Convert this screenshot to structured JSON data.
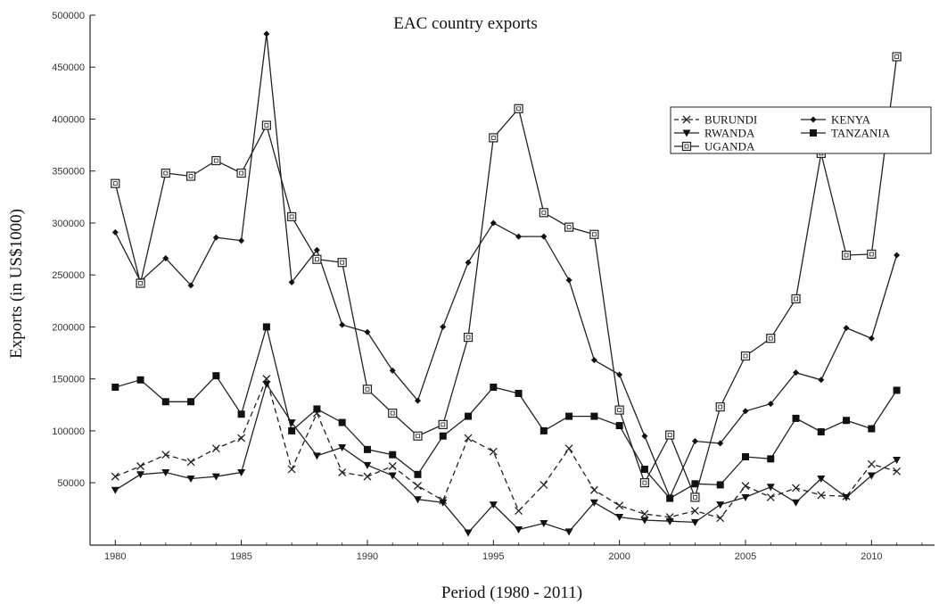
{
  "chart_data": {
    "type": "line",
    "title": "EAC country exports",
    "xlabel": "Period (1980 - 2011)",
    "ylabel": "Exports (in US$1000)",
    "xlim": [
      1979,
      2012.5
    ],
    "ylim": [
      -10000,
      500000
    ],
    "x_ticks": [
      1980,
      1985,
      1990,
      1995,
      2000,
      2005,
      2010
    ],
    "y_ticks": [
      50000,
      100000,
      150000,
      200000,
      250000,
      300000,
      350000,
      400000,
      450000,
      500000
    ],
    "x_tick_labels": [
      "1980",
      "1985",
      "1990",
      "1995",
      "2000",
      "2005",
      "2010"
    ],
    "y_tick_labels": [
      "50000",
      "100000",
      "150000",
      "200000",
      "250000",
      "300000",
      "350000",
      "400000",
      "450000",
      "500000"
    ],
    "grid": false,
    "legend_position": "top-right",
    "x": [
      1980,
      1981,
      1982,
      1983,
      1984,
      1985,
      1986,
      1987,
      1988,
      1989,
      1990,
      1991,
      1992,
      1993,
      1994,
      1995,
      1996,
      1997,
      1998,
      1999,
      2000,
      2001,
      2002,
      2003,
      2004,
      2005,
      2006,
      2007,
      2008,
      2009,
      2010,
      2011
    ],
    "series": [
      {
        "name": "BURUNDI",
        "marker": "x",
        "dash": true,
        "color": "#222222",
        "values": [
          56000,
          66000,
          77000,
          70000,
          83000,
          93000,
          150000,
          63000,
          117000,
          60000,
          56000,
          66000,
          47000,
          33000,
          93000,
          80000,
          23000,
          48000,
          83000,
          43000,
          28000,
          20000,
          17000,
          23000,
          16000,
          47000,
          36000,
          45000,
          38000,
          37000,
          68000,
          61000
        ]
      },
      {
        "name": "KENYA",
        "marker": "diamond",
        "dash": false,
        "color": "#222222",
        "values": [
          291000,
          244000,
          266000,
          240000,
          286000,
          283000,
          482000,
          243000,
          274000,
          202000,
          195000,
          158000,
          129000,
          200000,
          262000,
          300000,
          287000,
          287000,
          245000,
          168000,
          154000,
          95000,
          36000,
          90000,
          88000,
          119000,
          126000,
          156000,
          149000,
          199000,
          189000,
          269000
        ]
      },
      {
        "name": "RWANDA",
        "marker": "triangle-down",
        "dash": false,
        "color": "#222222",
        "values": [
          43000,
          58000,
          60000,
          54000,
          56000,
          60000,
          145000,
          108000,
          76000,
          84000,
          67000,
          57000,
          34000,
          31000,
          2000,
          29000,
          5000,
          11000,
          3000,
          31000,
          17000,
          14000,
          13000,
          12000,
          29000,
          36000,
          46000,
          31000,
          54000,
          36000,
          57000,
          72000
        ]
      },
      {
        "name": "TANZANIA",
        "marker": "square",
        "dash": false,
        "color": "#222222",
        "values": [
          142000,
          149000,
          128000,
          128000,
          153000,
          116000,
          200000,
          100000,
          121000,
          108000,
          82000,
          77000,
          58000,
          95000,
          114000,
          142000,
          136000,
          100000,
          114000,
          114000,
          105000,
          63000,
          35000,
          49000,
          48000,
          75000,
          73000,
          112000,
          99000,
          110000,
          102000,
          139000
        ]
      },
      {
        "name": "UGANDA",
        "marker": "square-open",
        "dash": false,
        "color": "#222222",
        "values": [
          338000,
          242000,
          348000,
          345000,
          360000,
          348000,
          394000,
          306000,
          265000,
          262000,
          140000,
          117000,
          95000,
          106000,
          190000,
          382000,
          410000,
          310000,
          296000,
          289000,
          120000,
          50000,
          96000,
          36000,
          123000,
          172000,
          189000,
          227000,
          367000,
          269000,
          270000,
          460000
        ]
      }
    ]
  }
}
